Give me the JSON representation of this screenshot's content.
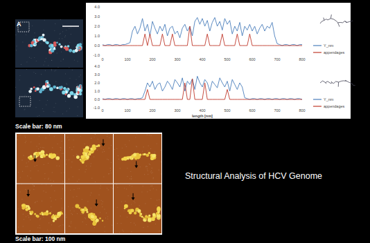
{
  "chart_data": [
    {
      "type": "line",
      "x": [
        0,
        10,
        20,
        30,
        40,
        50,
        60,
        70,
        80,
        90,
        100,
        110,
        120,
        130,
        140,
        150,
        160,
        170,
        180,
        190,
        200,
        210,
        220,
        230,
        240,
        250,
        260,
        270,
        280,
        290,
        300,
        310,
        320,
        330,
        340,
        350,
        360,
        370,
        380,
        390,
        400,
        410,
        420,
        430,
        440,
        450,
        460,
        470,
        480,
        490,
        500,
        510,
        520,
        530,
        540,
        550,
        560,
        570,
        580,
        590,
        600,
        610,
        620,
        630,
        640,
        650,
        660,
        670,
        680,
        690,
        700,
        710,
        720,
        730,
        740,
        750,
        760,
        770,
        780,
        790,
        800
      ],
      "series": [
        {
          "name": "Y_nm",
          "color": "#4a7ebb",
          "values": [
            0.1,
            0.0,
            0.1,
            0.1,
            0.0,
            0.1,
            0.1,
            0.0,
            0.1,
            0.1,
            0.2,
            0.3,
            1.5,
            2.0,
            1.2,
            1.8,
            2.8,
            1.5,
            2.2,
            1.0,
            2.5,
            1.8,
            1.2,
            2.0,
            1.5,
            2.2,
            1.0,
            1.8,
            2.0,
            1.2,
            1.5,
            0.8,
            1.8,
            2.2,
            1.5,
            2.0,
            1.0,
            2.5,
            2.9,
            2.2,
            2.8,
            2.0,
            2.6,
            1.5,
            2.4,
            2.9,
            2.0,
            2.5,
            1.6,
            2.8,
            2.2,
            2.6,
            1.2,
            2.0,
            1.5,
            2.4,
            1.0,
            2.0,
            1.6,
            2.2,
            1.5,
            2.0,
            1.2,
            1.8,
            2.2,
            1.5,
            2.0,
            1.8,
            2.4,
            1.0,
            0.2,
            0.1,
            0.0,
            0.1,
            0.1,
            0.0,
            0.1,
            0.1,
            0.0,
            0.1,
            0.1
          ]
        },
        {
          "name": "appendages",
          "color": "#c0392b",
          "values": [
            0,
            0,
            0,
            0,
            0,
            0,
            0,
            0,
            0,
            0,
            0,
            0,
            0,
            0,
            0,
            0,
            0,
            1.2,
            0,
            1.2,
            0,
            0,
            0,
            0,
            1.2,
            0,
            0,
            0,
            1.2,
            0,
            0,
            0,
            0,
            0,
            0,
            2.0,
            0,
            0,
            0,
            0,
            0,
            0,
            1.2,
            0,
            0,
            0,
            0,
            0,
            1.2,
            0,
            0,
            0,
            0,
            0,
            1.2,
            0,
            0,
            0,
            0,
            1.2,
            0,
            0,
            0,
            0,
            0,
            0,
            0,
            0,
            0,
            0,
            0,
            0,
            0,
            0,
            0,
            0,
            0,
            0,
            0,
            0,
            0
          ]
        }
      ],
      "xlim": [
        0,
        800
      ],
      "xticks": [
        0,
        100,
        200,
        300,
        400,
        500,
        600,
        700,
        800
      ],
      "ylim": [
        -1,
        4
      ],
      "yticks": [
        {
          "value": -1,
          "label": "-1.0"
        },
        {
          "value": 0,
          "label": "0.0"
        },
        {
          "value": 1,
          "label": "1.0"
        },
        {
          "value": 2,
          "label": "2.0"
        },
        {
          "value": 3,
          "label": "3.0"
        },
        {
          "value": 4,
          "label": "4.0"
        }
      ],
      "grid": false,
      "legend": "right"
    },
    {
      "type": "line",
      "x_label": "length [nm]",
      "x": [
        0,
        10,
        20,
        30,
        40,
        50,
        60,
        70,
        80,
        90,
        100,
        110,
        120,
        130,
        140,
        150,
        160,
        170,
        180,
        190,
        200,
        210,
        220,
        230,
        240,
        250,
        260,
        270,
        280,
        290,
        300,
        310,
        320,
        330,
        340,
        350,
        360,
        370,
        380,
        390,
        400,
        410,
        420,
        430,
        440,
        450,
        460,
        470,
        480,
        490,
        500,
        510,
        520,
        530,
        540,
        550,
        560,
        570,
        580,
        590,
        600,
        610,
        620,
        630,
        640,
        650,
        660,
        670,
        680,
        690,
        700,
        710,
        720,
        730,
        740,
        750,
        760,
        770,
        780,
        790,
        800
      ],
      "series": [
        {
          "name": "Y_nm",
          "color": "#4a7ebb",
          "values": [
            0.1,
            0.0,
            0.1,
            0.1,
            0.0,
            0.1,
            0.1,
            0.0,
            0.1,
            0.1,
            0.0,
            0.1,
            0.1,
            0.0,
            0.1,
            0.1,
            0.2,
            1.0,
            2.0,
            1.5,
            2.2,
            1.2,
            1.8,
            2.0,
            1.0,
            1.5,
            2.2,
            1.8,
            1.2,
            2.4,
            2.0,
            1.5,
            2.6,
            1.0,
            2.2,
            1.8,
            2.5,
            1.2,
            2.8,
            2.0,
            1.5,
            2.4,
            2.0,
            1.0,
            2.2,
            1.8,
            1.4,
            2.6,
            2.0,
            1.5,
            2.2,
            1.0,
            2.4,
            1.8,
            1.2,
            2.0,
            1.5,
            0.2,
            0.1,
            0.0,
            0.1,
            0.1,
            0.0,
            0.1,
            0.1,
            0.0,
            0.1,
            0.1,
            0.0,
            0.1,
            0.1,
            0.0,
            0.1,
            0.1,
            0.0,
            0.1,
            0.1,
            0.0,
            0.1,
            0.1,
            0.0
          ]
        },
        {
          "name": "appendages",
          "color": "#c0392b",
          "values": [
            0,
            0,
            0,
            0,
            0,
            0,
            0,
            0,
            0,
            0,
            0,
            0,
            0,
            0,
            0,
            0,
            0,
            0,
            1.2,
            0,
            0,
            0,
            0,
            0,
            0,
            0,
            0,
            0,
            0,
            0,
            0,
            0,
            0,
            2.0,
            0,
            0,
            2.5,
            0,
            0,
            0,
            0,
            2.0,
            0,
            0,
            0,
            0,
            0,
            0,
            0,
            0,
            1.2,
            0,
            0,
            0,
            0,
            0,
            0,
            0,
            0,
            0,
            0,
            0,
            0,
            0,
            0,
            0,
            0,
            0,
            0,
            0,
            0,
            0,
            0,
            0,
            0,
            0,
            0,
            0,
            0,
            0,
            0
          ]
        }
      ],
      "xlim": [
        0,
        800
      ],
      "xticks": [
        0,
        100,
        200,
        300,
        400,
        500,
        600,
        700,
        800
      ],
      "ylim": [
        -1,
        4
      ],
      "yticks": [
        {
          "value": -1,
          "label": "-1.0"
        },
        {
          "value": 0,
          "label": "0.0"
        },
        {
          "value": 1,
          "label": "1.0"
        },
        {
          "value": 2,
          "label": "2.0"
        },
        {
          "value": 3,
          "label": "3.0"
        },
        {
          "value": 4,
          "label": "4.0"
        }
      ],
      "grid": false,
      "legend": "right"
    }
  ],
  "slide": {
    "panel_label": "A",
    "scale_bar_top": "Scale bar: 80 nm",
    "scale_bar_bottom": "Scale bar: 100 nm",
    "title": "Structural Analysis of HCV Genome"
  }
}
